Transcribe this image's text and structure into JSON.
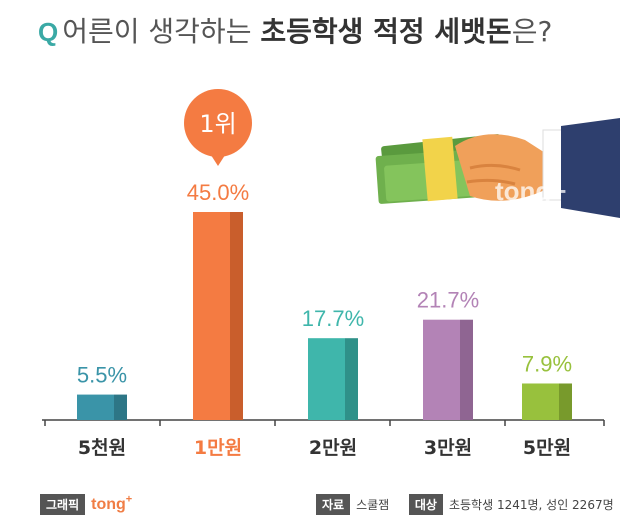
{
  "title": {
    "q_mark": "Q",
    "part1": "어른이 생각하는 ",
    "part2": "초등학생 적정 세뱃돈",
    "part3": "은?"
  },
  "chart_data": {
    "type": "bar",
    "title": "어른이 생각하는 초등학생 적정 세뱃돈은?",
    "categories": [
      "5천원",
      "1만원",
      "2만원",
      "3만원",
      "5만원"
    ],
    "values": [
      5.5,
      45.0,
      17.7,
      21.7,
      7.9
    ],
    "value_labels": [
      "5.5%",
      "45.0%",
      "17.7%",
      "21.7%",
      "7.9%"
    ],
    "unit": "%",
    "ylim": [
      0,
      50
    ],
    "grid": false,
    "bar_colors": [
      "#3a94a8",
      "#f47b42",
      "#3fb6ab",
      "#b383b6",
      "#98c13d"
    ],
    "bar_shade_colors": [
      "#2d7686",
      "#c95e2c",
      "#2f9189",
      "#8f6592",
      "#789a2c"
    ],
    "label_colors": [
      "#3a94a8",
      "#f47b42",
      "#3fb6ab",
      "#b383b6",
      "#98c13d"
    ],
    "highlight": {
      "index": 1,
      "text": "1위",
      "color": "#f47b42"
    }
  },
  "watermark": "tong+",
  "footer": {
    "graphic_tag": "그래픽",
    "brand": "tong",
    "brand_sup": "+",
    "source_tag": "자료",
    "source_value": "스쿨잼",
    "target_tag": "대상",
    "target_value": "초등학생 1241명, 성인 2267명"
  }
}
